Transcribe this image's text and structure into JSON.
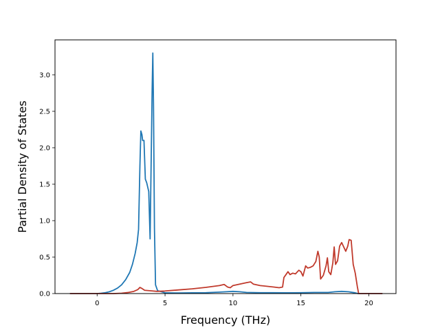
{
  "chart_data": {
    "type": "line",
    "title": "",
    "xlabel": "Frequency (THz)",
    "ylabel": "Partial Density of States",
    "xlim": [
      -3.1,
      22.0
    ],
    "ylim": [
      0.0,
      3.48
    ],
    "xticks": [
      0,
      5,
      10,
      15,
      20
    ],
    "yticks": [
      0.0,
      0.5,
      1.0,
      1.5,
      2.0,
      2.5,
      3.0
    ],
    "xtick_labels": [
      "0",
      "5",
      "10",
      "15",
      "20"
    ],
    "ytick_labels": [
      "0.0",
      "0.5",
      "1.0",
      "1.5",
      "2.0",
      "2.5",
      "3.0"
    ],
    "grid": false,
    "legend": "none",
    "series": [
      {
        "color": "#1f77b4",
        "points": [
          [
            -2.0,
            0.0
          ],
          [
            0.0,
            0.0
          ],
          [
            0.3,
            0.005
          ],
          [
            0.6,
            0.012
          ],
          [
            0.9,
            0.025
          ],
          [
            1.2,
            0.045
          ],
          [
            1.5,
            0.075
          ],
          [
            1.8,
            0.12
          ],
          [
            2.1,
            0.19
          ],
          [
            2.4,
            0.29
          ],
          [
            2.6,
            0.4
          ],
          [
            2.8,
            0.55
          ],
          [
            2.95,
            0.7
          ],
          [
            3.05,
            0.88
          ],
          [
            3.15,
            1.75
          ],
          [
            3.22,
            2.23
          ],
          [
            3.3,
            2.18
          ],
          [
            3.35,
            2.1
          ],
          [
            3.45,
            2.1
          ],
          [
            3.55,
            1.57
          ],
          [
            3.65,
            1.52
          ],
          [
            3.8,
            1.4
          ],
          [
            3.9,
            0.75
          ],
          [
            3.97,
            1.7
          ],
          [
            4.05,
            2.8
          ],
          [
            4.1,
            3.3
          ],
          [
            4.15,
            2.6
          ],
          [
            4.22,
            0.9
          ],
          [
            4.3,
            0.12
          ],
          [
            4.45,
            0.04
          ],
          [
            5.0,
            0.01
          ],
          [
            6.0,
            0.008
          ],
          [
            7.0,
            0.01
          ],
          [
            8.0,
            0.012
          ],
          [
            9.0,
            0.02
          ],
          [
            9.5,
            0.025
          ],
          [
            10.0,
            0.03
          ],
          [
            10.5,
            0.025
          ],
          [
            11.0,
            0.015
          ],
          [
            12.0,
            0.012
          ],
          [
            13.0,
            0.012
          ],
          [
            14.0,
            0.01
          ],
          [
            15.0,
            0.012
          ],
          [
            16.0,
            0.015
          ],
          [
            17.0,
            0.015
          ],
          [
            17.5,
            0.025
          ],
          [
            18.0,
            0.03
          ],
          [
            18.5,
            0.025
          ],
          [
            19.0,
            0.01
          ],
          [
            19.2,
            0.0
          ],
          [
            21.0,
            0.0
          ]
        ]
      },
      {
        "color": "#c0392b",
        "points": [
          [
            -2.0,
            0.0
          ],
          [
            1.2,
            0.0
          ],
          [
            1.8,
            0.005
          ],
          [
            2.3,
            0.015
          ],
          [
            2.7,
            0.03
          ],
          [
            3.0,
            0.055
          ],
          [
            3.15,
            0.085
          ],
          [
            3.3,
            0.07
          ],
          [
            3.5,
            0.045
          ],
          [
            3.8,
            0.04
          ],
          [
            4.1,
            0.035
          ],
          [
            4.4,
            0.03
          ],
          [
            5.0,
            0.035
          ],
          [
            6.0,
            0.05
          ],
          [
            7.0,
            0.065
          ],
          [
            8.0,
            0.085
          ],
          [
            9.0,
            0.11
          ],
          [
            9.35,
            0.125
          ],
          [
            9.6,
            0.09
          ],
          [
            9.8,
            0.08
          ],
          [
            10.0,
            0.11
          ],
          [
            10.5,
            0.13
          ],
          [
            11.0,
            0.15
          ],
          [
            11.3,
            0.16
          ],
          [
            11.5,
            0.13
          ],
          [
            12.0,
            0.11
          ],
          [
            13.0,
            0.09
          ],
          [
            13.4,
            0.08
          ],
          [
            13.65,
            0.09
          ],
          [
            13.75,
            0.22
          ],
          [
            13.9,
            0.26
          ],
          [
            14.05,
            0.3
          ],
          [
            14.2,
            0.26
          ],
          [
            14.4,
            0.28
          ],
          [
            14.6,
            0.27
          ],
          [
            14.85,
            0.32
          ],
          [
            15.0,
            0.3
          ],
          [
            15.15,
            0.24
          ],
          [
            15.35,
            0.38
          ],
          [
            15.5,
            0.35
          ],
          [
            15.7,
            0.36
          ],
          [
            15.9,
            0.38
          ],
          [
            16.1,
            0.44
          ],
          [
            16.25,
            0.58
          ],
          [
            16.35,
            0.5
          ],
          [
            16.45,
            0.2
          ],
          [
            16.65,
            0.25
          ],
          [
            16.85,
            0.38
          ],
          [
            16.95,
            0.49
          ],
          [
            17.05,
            0.3
          ],
          [
            17.2,
            0.26
          ],
          [
            17.35,
            0.42
          ],
          [
            17.45,
            0.64
          ],
          [
            17.55,
            0.4
          ],
          [
            17.7,
            0.45
          ],
          [
            17.85,
            0.65
          ],
          [
            18.0,
            0.7
          ],
          [
            18.15,
            0.64
          ],
          [
            18.3,
            0.58
          ],
          [
            18.45,
            0.65
          ],
          [
            18.55,
            0.74
          ],
          [
            18.7,
            0.73
          ],
          [
            18.85,
            0.4
          ],
          [
            19.0,
            0.28
          ],
          [
            19.15,
            0.1
          ],
          [
            19.25,
            0.0
          ],
          [
            21.0,
            0.0
          ]
        ]
      }
    ]
  }
}
